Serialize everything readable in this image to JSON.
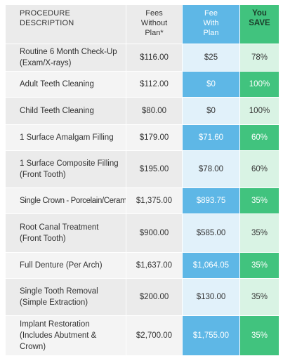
{
  "header": {
    "desc_line1": "PROCEDURE",
    "desc_line2": "DESCRIPTION",
    "fees_line1": "Fees",
    "fees_line2": "Without",
    "fees_line3": "Plan*",
    "plan_line1": "Fee",
    "plan_line2": "With",
    "plan_line3": "Plan",
    "save_line1": "You",
    "save_line2": "SAVE"
  },
  "colors": {
    "plan_highlight": "#5eb7e6",
    "plan_light": "#e1f1fa",
    "save_highlight": "#41c37e",
    "save_light": "#d9f3e4",
    "row_gray": "#ebebeb"
  },
  "rows": [
    {
      "line1": "Routine 6 Month Check-Up",
      "line2": "(Exam/X-rays)",
      "fee": "$116.00",
      "plan": "$25",
      "save": "78%"
    },
    {
      "line1": "Adult Teeth Cleaning",
      "line2": "",
      "fee": "$112.00",
      "plan": "$0",
      "save": "100%"
    },
    {
      "line1": "Child Teeth Cleaning",
      "line2": "",
      "fee": "$80.00",
      "plan": "$0",
      "save": "100%"
    },
    {
      "line1": "1 Surface Amalgam Filling",
      "line2": "",
      "fee": "$179.00",
      "plan": "$71.60",
      "save": "60%"
    },
    {
      "line1": "1 Surface Composite Filling",
      "line2": "(Front Tooth)",
      "fee": "$195.00",
      "plan": "$78.00",
      "save": "60%"
    },
    {
      "line1": "Single Crown - Porcelain/Ceramic",
      "line2": "",
      "fee": "$1,375.00",
      "plan": "$893.75",
      "save": "35%"
    },
    {
      "line1": "Root Canal Treatment",
      "line2": "(Front Tooth)",
      "fee": "$900.00",
      "plan": "$585.00",
      "save": "35%"
    },
    {
      "line1": "Full Denture (Per Arch)",
      "line2": "",
      "fee": "$1,637.00",
      "plan": "$1,064.05",
      "save": "35%"
    },
    {
      "line1": "Single Tooth Removal",
      "line2": "(Simple Extraction)",
      "fee": "$200.00",
      "plan": "$130.00",
      "save": "35%"
    },
    {
      "line1": "Implant Restoration",
      "line2": "(Includes Abutment & Crown)",
      "fee": "$2,700.00",
      "plan": "$1,755.00",
      "save": "35%"
    }
  ]
}
